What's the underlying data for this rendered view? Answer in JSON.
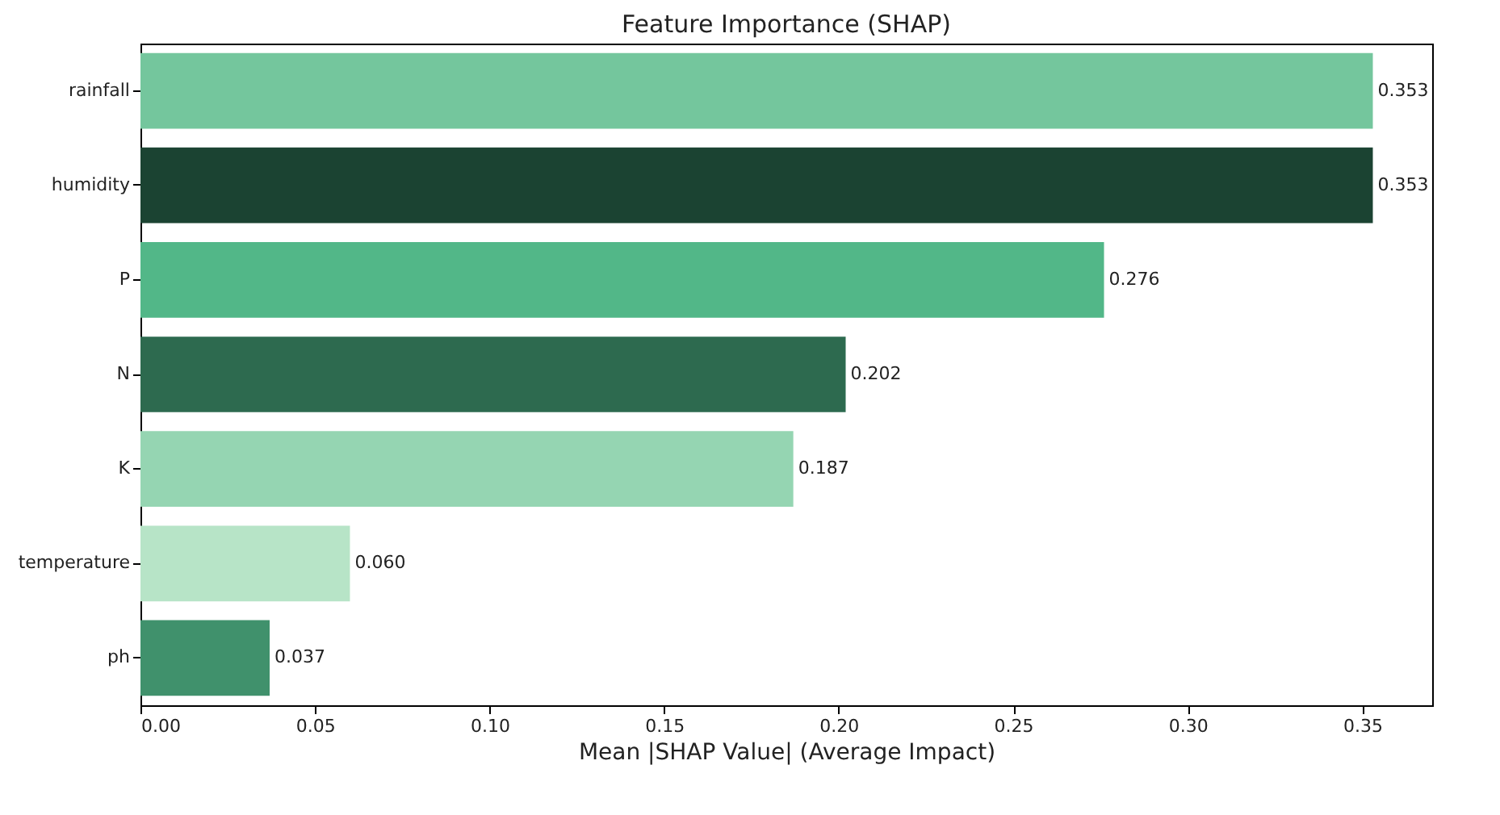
{
  "chart_data": {
    "type": "bar",
    "orientation": "horizontal",
    "title": "Feature Importance (SHAP)",
    "xlabel": "Mean |SHAP Value| (Average Impact)",
    "categories": [
      "rainfall",
      "humidity",
      "P",
      "N",
      "K",
      "temperature",
      "ph"
    ],
    "values": [
      0.353,
      0.353,
      0.276,
      0.202,
      0.187,
      0.06,
      0.037
    ],
    "colors": [
      "#74c69d",
      "#1b4332",
      "#52b788",
      "#2d6a4f",
      "#95d5b2",
      "#b7e4c7",
      "#40916c"
    ],
    "value_labels": [
      "0.353",
      "0.353",
      "0.276",
      "0.202",
      "0.187",
      "0.060",
      "0.037"
    ],
    "xlim": [
      0,
      0.37
    ],
    "xticks": [
      {
        "value": 0,
        "label": "0.00"
      },
      0.05,
      {
        "value": 0.1,
        "label": "0.10"
      },
      0.15,
      {
        "value": 0.2,
        "label": "0.20"
      },
      0.25,
      {
        "value": 0.3,
        "label": "0.30"
      },
      0.35
    ],
    "grid": false
  }
}
